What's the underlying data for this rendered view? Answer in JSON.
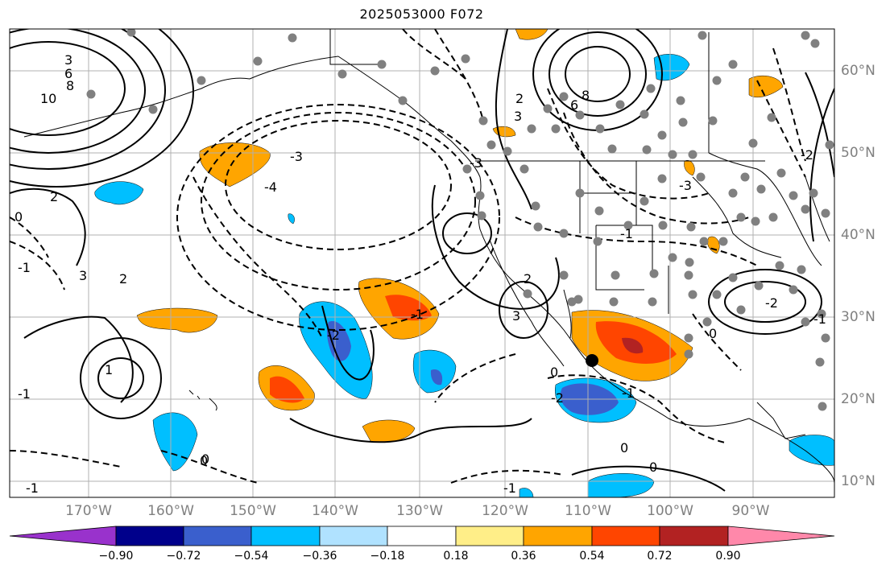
{
  "title": "2025053000 F072",
  "map": {
    "longitude_labels": [
      "170°W",
      "160°W",
      "150°W",
      "140°W",
      "130°W",
      "120°W",
      "110°W",
      "100°W",
      "90°W"
    ],
    "latitude_labels": [
      "60°N",
      "50°N",
      "40°N",
      "30°N",
      "20°N",
      "10°N"
    ],
    "contour_labels": [
      "10",
      "8",
      "6",
      "3",
      "2",
      "-3",
      "-4",
      "-3",
      "3",
      "2",
      "1",
      "-1",
      "0",
      "-1",
      "0",
      "-2",
      "-1",
      "3",
      "3",
      "8",
      "6",
      "-2",
      "-1",
      "2",
      "0",
      "-3",
      "-1",
      "-2",
      "0",
      "-2",
      "0",
      "-1",
      "0",
      "-1",
      "2",
      "0",
      "-1"
    ],
    "colors": {
      "land_outline": "#000000",
      "grid": "#b0b0b0",
      "station_dot": "#808080",
      "marker": "#000000"
    }
  },
  "colorbar": {
    "tick_labels": [
      "−0.90",
      "−0.72",
      "−0.54",
      "−0.36",
      "−0.18",
      "0.18",
      "0.36",
      "0.54",
      "0.72",
      "0.90"
    ],
    "colors": [
      "#9932cc",
      "#00008b",
      "#3a5fcd",
      "#00bfff",
      "#b0e2ff",
      "#ffffff",
      "#ffee88",
      "#ffa500",
      "#ff4500",
      "#b22222",
      "#ff88aa"
    ]
  }
}
